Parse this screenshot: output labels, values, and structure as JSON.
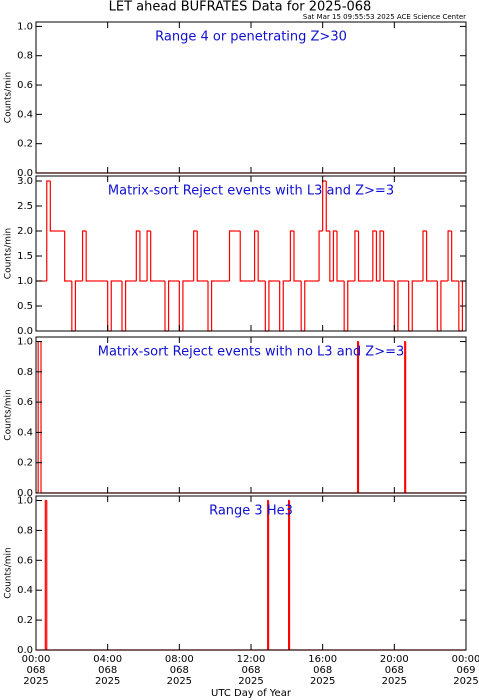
{
  "title": "LET ahead BUFRATES Data for 2025-068",
  "subtitle": "Sat Mar 15 09:55:53 2025 ACE Science Center",
  "xlabel": "UTC Day of Year",
  "chart_data": [
    {
      "type": "step",
      "title": "Range 4 or  penetrating Z>30",
      "ylabel": "Counts/min",
      "color": "#ff0000",
      "x": [
        0
      ],
      "values": [
        0
      ],
      "xlim": [
        0,
        24
      ],
      "xticks": [
        0,
        4,
        8,
        12,
        16,
        20,
        24
      ],
      "ylim": [
        0,
        1.03
      ],
      "yticks": [
        {
          "value": 0,
          "label": "0.0"
        },
        0.2,
        0.4,
        0.6,
        0.8,
        {
          "value": 1,
          "label": "1.0"
        }
      ]
    },
    {
      "type": "step",
      "title": "Matrix-sort Reject events with L3 and Z>=3",
      "ylabel": "Counts/min",
      "color": "#ff0000",
      "x": [
        0,
        0.2,
        0.4,
        0.6,
        0.8,
        1,
        1.2,
        1.4,
        1.6,
        1.8,
        2,
        2.2,
        2.4,
        2.6,
        2.8,
        3,
        3.2,
        3.4,
        3.6,
        3.8,
        4,
        4.2,
        4.4,
        4.6,
        4.8,
        5,
        5.2,
        5.4,
        5.6,
        5.8,
        6,
        6.2,
        6.4,
        6.6,
        6.8,
        7,
        7.2,
        7.4,
        7.6,
        7.8,
        8,
        8.2,
        8.4,
        8.6,
        8.8,
        9,
        9.2,
        9.4,
        9.6,
        9.8,
        10,
        10.2,
        10.4,
        10.6,
        10.8,
        11,
        11.2,
        11.4,
        11.6,
        11.8,
        12,
        12.2,
        12.4,
        12.6,
        12.8,
        13,
        13.2,
        13.4,
        13.6,
        13.8,
        14,
        14.2,
        14.4,
        14.6,
        14.8,
        15,
        15.2,
        15.4,
        15.6,
        15.8,
        16,
        16.2,
        16.4,
        16.6,
        16.8,
        17,
        17.2,
        17.4,
        17.6,
        17.8,
        18,
        18.2,
        18.4,
        18.6,
        18.8,
        19,
        19.2,
        19.4,
        19.6,
        19.8,
        20,
        20.2,
        20.4,
        20.6,
        20.8,
        21,
        21.2,
        21.4,
        21.6,
        21.8,
        22,
        22.2,
        22.4,
        22.6,
        22.8,
        23,
        23.2,
        23.4,
        23.6,
        23.8
      ],
      "values": [
        1,
        1,
        1,
        3,
        2,
        2,
        2,
        2,
        1,
        1,
        0,
        1,
        1,
        2,
        1,
        1,
        1,
        1,
        1,
        1,
        0,
        1,
        1,
        1,
        0,
        1,
        1,
        1,
        2,
        1,
        1,
        2,
        1,
        1,
        1,
        1,
        0,
        1,
        1,
        1,
        0,
        1,
        1,
        1,
        2,
        1,
        1,
        1,
        0,
        1,
        1,
        1,
        1,
        1,
        2,
        2,
        2,
        1,
        1,
        1,
        1,
        2,
        1,
        1,
        0,
        1,
        1,
        1,
        0,
        1,
        1,
        2,
        1,
        1,
        0,
        1,
        1,
        1,
        1,
        2,
        3,
        2,
        1,
        2,
        1,
        1,
        0,
        1,
        1,
        2,
        1,
        1,
        1,
        1,
        2,
        1,
        2,
        1,
        1,
        1,
        0,
        1,
        1,
        1,
        0,
        1,
        1,
        1,
        2,
        1,
        1,
        1,
        0,
        1,
        1,
        2,
        1,
        1,
        0,
        1
      ],
      "xlim": [
        0,
        24
      ],
      "xticks": [
        0,
        4,
        8,
        12,
        16,
        20,
        24
      ],
      "ylim": [
        0,
        3.1
      ],
      "yticks": [
        {
          "value": 0,
          "label": "0.0"
        },
        0.5,
        {
          "value": 1,
          "label": "1.0"
        },
        1.5,
        {
          "value": 2,
          "label": "2.0"
        },
        2.5,
        {
          "value": 3,
          "label": "3.0"
        }
      ]
    },
    {
      "type": "step",
      "title": "Matrix-sort Reject events with no L3 and Z>=3",
      "ylabel": "Counts/min",
      "color": "#ff0000",
      "x": [
        0,
        0.12,
        0.28,
        17.95,
        18.0,
        20.58,
        20.63
      ],
      "values": [
        0,
        1,
        0,
        1,
        0,
        1,
        0
      ],
      "xlim": [
        0,
        24
      ],
      "xticks": [
        0,
        4,
        8,
        12,
        16,
        20,
        24
      ],
      "ylim": [
        0,
        1.03
      ],
      "yticks": [
        {
          "value": 0,
          "label": "0.0"
        },
        0.2,
        0.4,
        0.6,
        0.8,
        {
          "value": 1,
          "label": "1.0"
        }
      ]
    },
    {
      "type": "step",
      "title": "Range 3 He3",
      "ylabel": "Counts/min",
      "color": "#ff0000",
      "x": [
        0,
        0.52,
        0.6,
        12.93,
        12.98,
        14.1,
        14.15
      ],
      "values": [
        0,
        1,
        0,
        1,
        0,
        1,
        0
      ],
      "xlim": [
        0,
        24
      ],
      "xticks": [
        {
          "value": 0,
          "label": "00:00"
        },
        {
          "value": 4,
          "label": "04:00"
        },
        {
          "value": 8,
          "label": "08:00"
        },
        {
          "value": 12,
          "label": "12:00"
        },
        {
          "value": 16,
          "label": "16:00"
        },
        {
          "value": 20,
          "label": "20:00"
        },
        {
          "value": 24,
          "label": "00:00"
        }
      ],
      "xtick_days": [
        "068",
        "068",
        "068",
        "068",
        "068",
        "068",
        "069"
      ],
      "xtick_years": [
        "2025",
        "2025",
        "2025",
        "2025",
        "2025",
        "2025",
        "2025"
      ],
      "ylim": [
        0,
        1.03
      ],
      "yticks": [
        {
          "value": 0,
          "label": "0.0"
        },
        0.2,
        0.4,
        0.6,
        0.8,
        {
          "value": 1,
          "label": "1.0"
        }
      ]
    }
  ]
}
